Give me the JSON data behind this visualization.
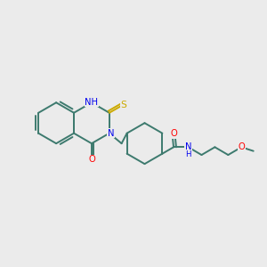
{
  "background_color": "#ebebeb",
  "bond_color": "#3d7a6e",
  "atom_colors": {
    "N": "#0000ee",
    "O": "#ff0000",
    "S": "#ccaa00",
    "C": "#3d7a6e"
  },
  "figure_size": [
    3.0,
    3.0
  ],
  "dpi": 100,
  "lw": 1.4,
  "fs": 7.2
}
